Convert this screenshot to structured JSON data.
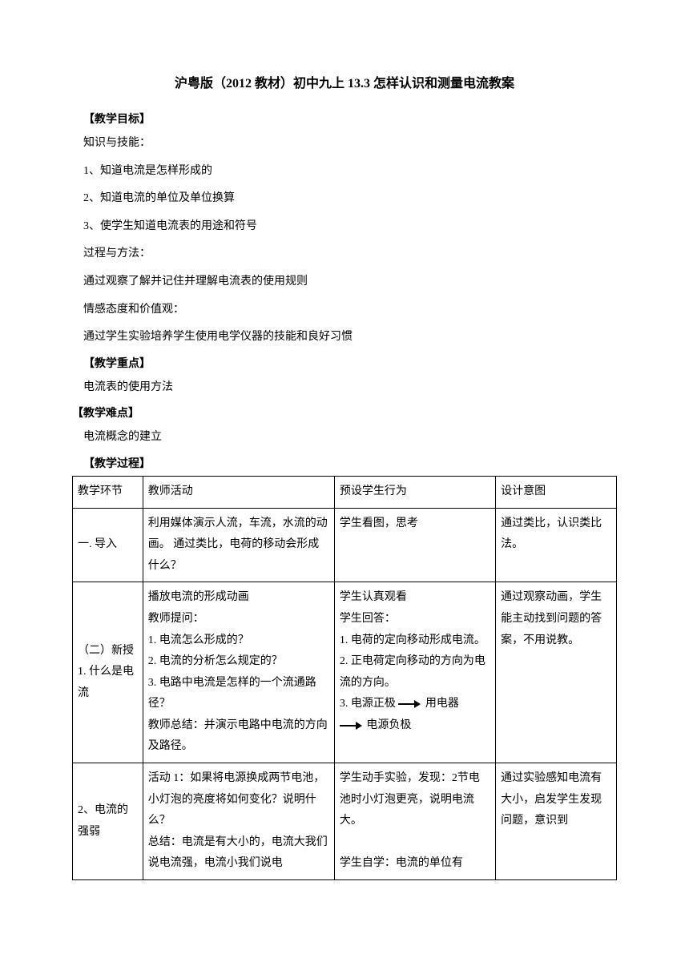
{
  "title": "沪粤版（2012 教材）初中九上 13.3 怎样认识和测量电流教案",
  "headings": {
    "objectives": "【教学目标】",
    "knowledge_skill": "知识与技能：",
    "ks1": "1、知道电流是怎样形成的",
    "ks2": "2、知道电流的单位及单位换算",
    "ks3": "3、使学生知道电流表的用途和符号",
    "process_method": "过程与方法：",
    "pm1": "通过观察了解并记住并理解电流表的使用规则",
    "attitude": "情感态度和价值观：",
    "att1": "通过学生实验培养学生使用电学仪器的技能和良好习惯",
    "key_point": "【教学重点】",
    "kp1": "电流表的使用方法",
    "difficulty": "【教学难点】",
    "d1": "电流概念的建立",
    "procedure": "【教学过程】"
  },
  "table": {
    "header": {
      "stage": "教学环节",
      "teacher": "教师活动",
      "student": "预设学生行为",
      "intent": "设计意图"
    },
    "rows": [
      {
        "stage": "一. 导入",
        "teacher": "利用媒体演示人流，车流，水流的动画。 通过类比，电荷的移动会形成什么？",
        "student": "学生看图，思考",
        "intent": "通过类比，认识类比法。"
      },
      {
        "stage": "（二）新授\n1. 什么是电流",
        "teacher": "播放电流的形成动画\n教师提问：\n1. 电流怎么形成的？\n2. 电流的分析怎么规定的？\n3. 电路中电流是怎样的一个流通路径？\n教师总结：并演示电路中电流的方向及路径。",
        "student_parts": {
          "p1": "学生认真观看",
          "p2": "学生回答：",
          "p3": "1. 电荷的定向移动形成电流。",
          "p4": "2. 正电荷定向移动的方向为电流的方向。",
          "p5a": "3. 电源正极",
          "p5b": "用电器",
          "p5c": "电源负极"
        },
        "intent": "通过观察动画，学生能主动找到问题的答案，不用说教。"
      },
      {
        "stage": "2、电流的强弱",
        "teacher": "活动 1：如果将电源换成两节电池，小灯泡的亮度将如何变化？说明什么？\n总结：电流是有大小的，电流大我们说电流强，电流小我们说电",
        "student": "学生动手实验，发现：2节电池时小灯泡更亮，说明电流大。\n\n学生自学：电流的单位有",
        "intent": "通过实验感知电流有大小，启发学生发现问题，意识到"
      }
    ]
  }
}
